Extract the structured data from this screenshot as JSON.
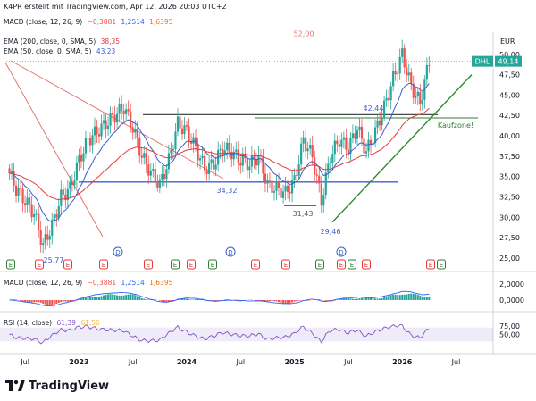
{
  "header": {
    "title": "K4PR erstellt mit TradingView.com, Apr 12, 2026 20:03 UTC+2"
  },
  "macd_top": {
    "label": "MACD (close, 12, 26, 9)",
    "v1": "−0,3881",
    "v2": "1,2514",
    "v3": "1,6395"
  },
  "ema200": {
    "label": "EMA (200, close, 0, SMA, 5)",
    "value": "38,35"
  },
  "ema50": {
    "label": "EMA (50, close, 0, SMA, 5)",
    "value": "43,23"
  },
  "macd_pane": {
    "label": "MACD (close, 12, 26, 9)",
    "v1": "−0,3881",
    "v2": "1,2514",
    "v3": "1,6395"
  },
  "rsi_pane": {
    "label": "RSI (14, close)",
    "v1": "61,39",
    "v2": "61,56"
  },
  "price_axis": {
    "currency": "EUR",
    "ticks": [
      "50,00",
      "47,50",
      "45,00",
      "42,50",
      "40,00",
      "37,50",
      "35,00",
      "32,50",
      "30,00",
      "27,50",
      "25,00"
    ],
    "symbol": "DHL",
    "last_price": "49,14"
  },
  "macd_axis": {
    "ticks": [
      "2,0000",
      "0,0000"
    ]
  },
  "rsi_axis": {
    "ticks": [
      "75,00",
      "50,00"
    ]
  },
  "time_axis": {
    "ticks": [
      "Jul",
      "2023",
      "Jul",
      "2024",
      "Jul",
      "2025",
      "Jul",
      "2026",
      "Jul"
    ]
  },
  "annotations": {
    "resistance_high": "52,00",
    "level_4244": "42,44",
    "level_3432": "34,32",
    "low_3143": "31,43",
    "low_2946": "29,46",
    "low_2577": "25,77",
    "buy_zone": "Kaufzone!"
  },
  "event_markers": [
    "E",
    "E",
    "E",
    "D",
    "E",
    "E",
    "E",
    "E",
    "D",
    "E",
    "E",
    "E",
    "E",
    "E",
    "D",
    "E",
    "E",
    "E",
    "E"
  ],
  "footer": {
    "brand": "TradingView"
  },
  "colors": {
    "up": "#26a69a",
    "down": "#ef5350",
    "ema50": "#3a5fcd",
    "ema200": "#e23c3c",
    "trend_green": "#2e8b2e",
    "support_blue": "#3f5fd6",
    "rsi": "#7e57c2"
  },
  "chart_data": [
    {
      "type": "candlestick",
      "title": "DHL",
      "currency": "EUR",
      "ylim": [
        24,
        52.5
      ],
      "x_ticks": [
        "Jul",
        "2023",
        "Jul",
        "2024",
        "Jul",
        "2025",
        "Jul",
        "2026",
        "Jul"
      ],
      "monthly_close": [
        {
          "x": "2022-05",
          "y": 36.0
        },
        {
          "x": "2022-06",
          "y": 33.5
        },
        {
          "x": "2022-07",
          "y": 32.0
        },
        {
          "x": "2022-08",
          "y": 30.5
        },
        {
          "x": "2022-09",
          "y": 26.5
        },
        {
          "x": "2022-10",
          "y": 29.0
        },
        {
          "x": "2022-11",
          "y": 32.5
        },
        {
          "x": "2022-12",
          "y": 33.5
        },
        {
          "x": "2023-01",
          "y": 37.0
        },
        {
          "x": "2023-02",
          "y": 39.5
        },
        {
          "x": "2023-03",
          "y": 40.5
        },
        {
          "x": "2023-04",
          "y": 41.5
        },
        {
          "x": "2023-05",
          "y": 42.5
        },
        {
          "x": "2023-06",
          "y": 43.5
        },
        {
          "x": "2023-07",
          "y": 41.0
        },
        {
          "x": "2023-08",
          "y": 37.5
        },
        {
          "x": "2023-09",
          "y": 35.5
        },
        {
          "x": "2023-10",
          "y": 34.0
        },
        {
          "x": "2023-11",
          "y": 37.0
        },
        {
          "x": "2023-12",
          "y": 41.5
        },
        {
          "x": "2024-01",
          "y": 40.5
        },
        {
          "x": "2024-02",
          "y": 38.5
        },
        {
          "x": "2024-03",
          "y": 36.0
        },
        {
          "x": "2024-04",
          "y": 36.5
        },
        {
          "x": "2024-05",
          "y": 38.5
        },
        {
          "x": "2024-06",
          "y": 38.0
        },
        {
          "x": "2024-07",
          "y": 37.0
        },
        {
          "x": "2024-08",
          "y": 36.5
        },
        {
          "x": "2024-09",
          "y": 37.5
        },
        {
          "x": "2024-10",
          "y": 34.0
        },
        {
          "x": "2024-11",
          "y": 33.5
        },
        {
          "x": "2024-12",
          "y": 33.0
        },
        {
          "x": "2025-01",
          "y": 34.5
        },
        {
          "x": "2025-02",
          "y": 39.5
        },
        {
          "x": "2025-03",
          "y": 37.5
        },
        {
          "x": "2025-04",
          "y": 32.0
        },
        {
          "x": "2025-05",
          "y": 37.5
        },
        {
          "x": "2025-06",
          "y": 39.5
        },
        {
          "x": "2025-07",
          "y": 38.5
        },
        {
          "x": "2025-08",
          "y": 41.0
        },
        {
          "x": "2025-09",
          "y": 38.0
        },
        {
          "x": "2025-10",
          "y": 40.5
        },
        {
          "x": "2025-11",
          "y": 43.5
        },
        {
          "x": "2025-12",
          "y": 47.0
        },
        {
          "x": "2026-01",
          "y": 50.0
        },
        {
          "x": "2026-02",
          "y": 46.0
        },
        {
          "x": "2026-03",
          "y": 44.0
        },
        {
          "x": "2026-04",
          "y": 49.14
        }
      ],
      "series": [
        {
          "name": "EMA (50, close, 0, SMA, 5)",
          "last": 43.23
        },
        {
          "name": "EMA (200, close, 0, SMA, 5)",
          "last": 38.35
        }
      ],
      "levels": [
        52.0,
        42.44,
        34.32,
        31.43,
        29.46,
        25.77
      ]
    },
    {
      "type": "line",
      "title": "MACD (close, 12, 26, 9)",
      "values": {
        "histogram": -0.3881,
        "macd": 1.2514,
        "signal": 1.6395
      }
    },
    {
      "type": "line",
      "title": "RSI (14, close)",
      "values": {
        "rsi": 61.39,
        "rsi_ma": 61.56
      },
      "ylim": [
        0,
        100
      ]
    }
  ]
}
